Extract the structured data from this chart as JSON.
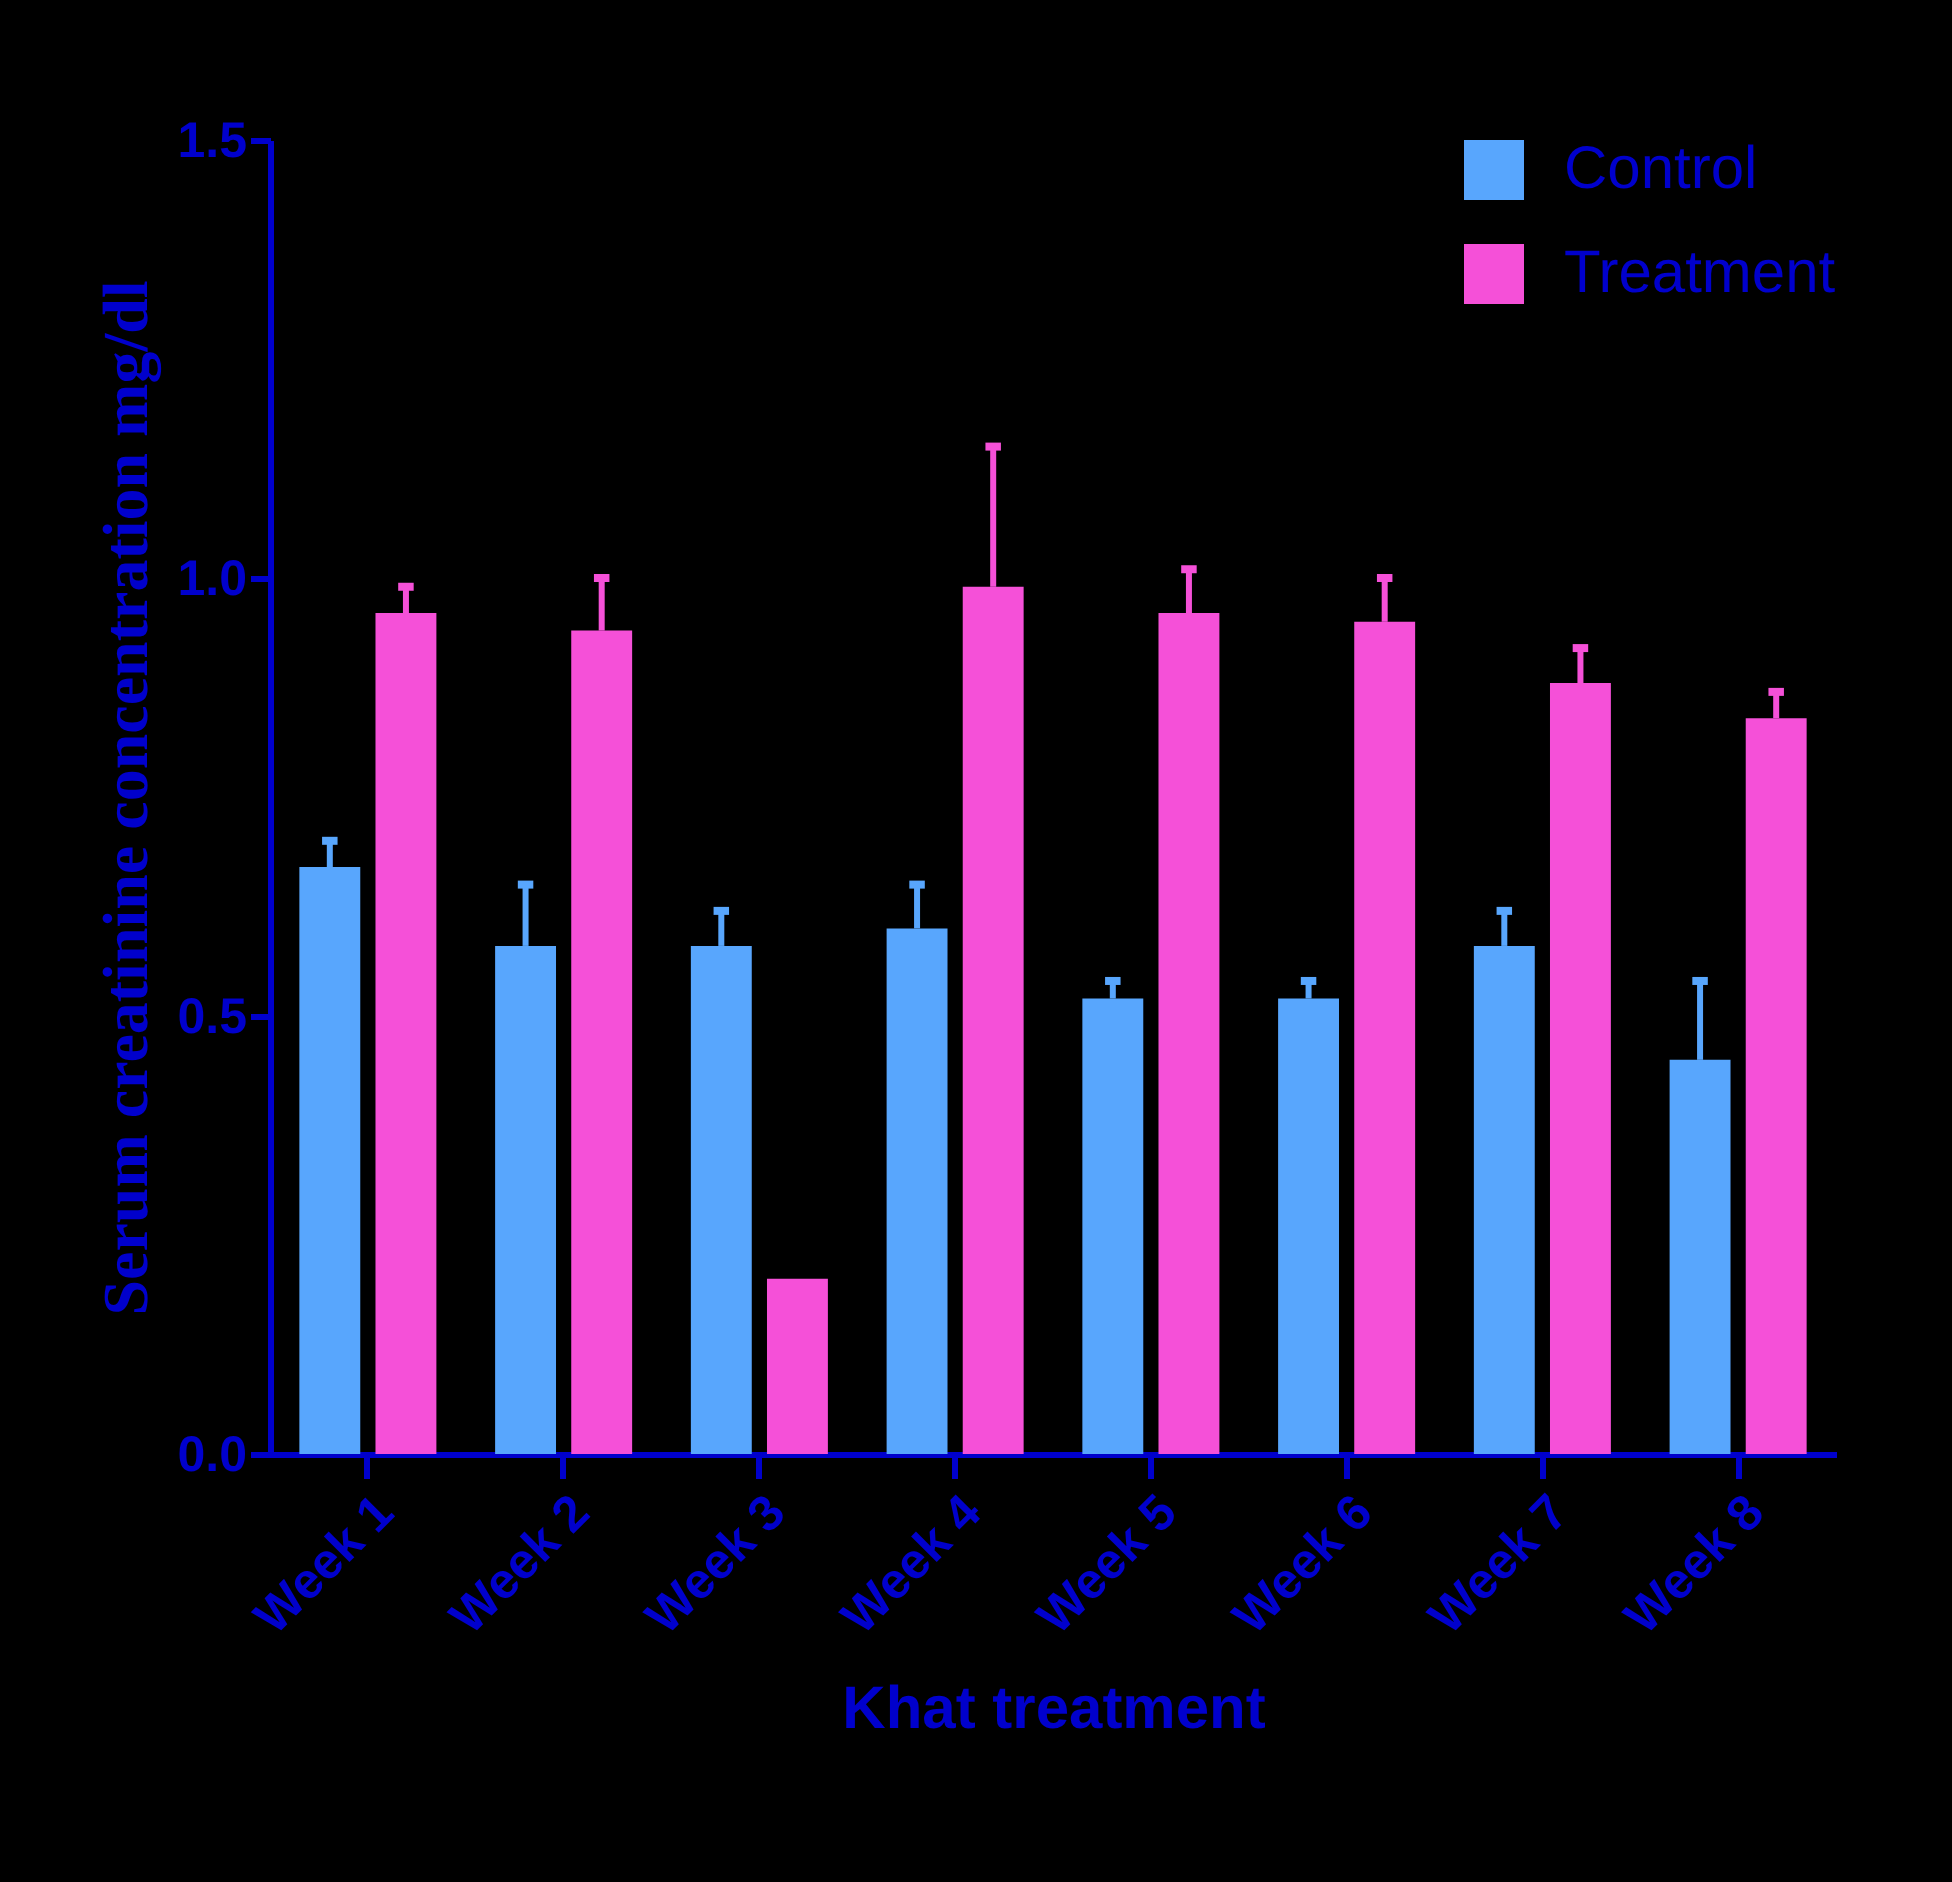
{
  "chart_data": {
    "type": "bar",
    "xlabel": "Khat treatment",
    "ylabel": "Serum creatinine concentration mg/dl",
    "categories": [
      "Week 1",
      "Week 2",
      "Week 3",
      "Week 4",
      "Week 5",
      "Week 6",
      "Week 7",
      "Week 8"
    ],
    "series": [
      {
        "name": "Control",
        "color": "#58a6fd",
        "values": [
          0.67,
          0.58,
          0.58,
          0.6,
          0.52,
          0.52,
          0.58,
          0.45
        ],
        "errors": [
          [
            0.67,
            0.7
          ],
          [
            0.58,
            0.65
          ],
          [
            0.58,
            0.62
          ],
          [
            0.6,
            0.65
          ],
          [
            0.52,
            0.54
          ],
          [
            0.52,
            0.54
          ],
          [
            0.58,
            0.62
          ],
          [
            0.45,
            0.54
          ]
        ]
      },
      {
        "name": "Treatment",
        "color": "#f550d8",
        "values": [
          0.96,
          0.94,
          0.2,
          0.99,
          0.96,
          0.95,
          0.88,
          0.84
        ],
        "errors": [
          [
            0.96,
            0.99
          ],
          [
            0.94,
            1.0
          ],
          null,
          [
            0.99,
            1.15
          ],
          [
            0.96,
            1.01
          ],
          [
            0.95,
            1.0
          ],
          [
            0.88,
            0.92
          ],
          [
            0.84,
            0.87
          ]
        ]
      }
    ],
    "ylim": [
      0,
      1.5
    ],
    "yticks": [
      {
        "value": 0,
        "label": "0.0"
      },
      0.5,
      {
        "value": 1,
        "label": "1.0"
      },
      1.5
    ],
    "grid": false,
    "legend": "top right"
  }
}
